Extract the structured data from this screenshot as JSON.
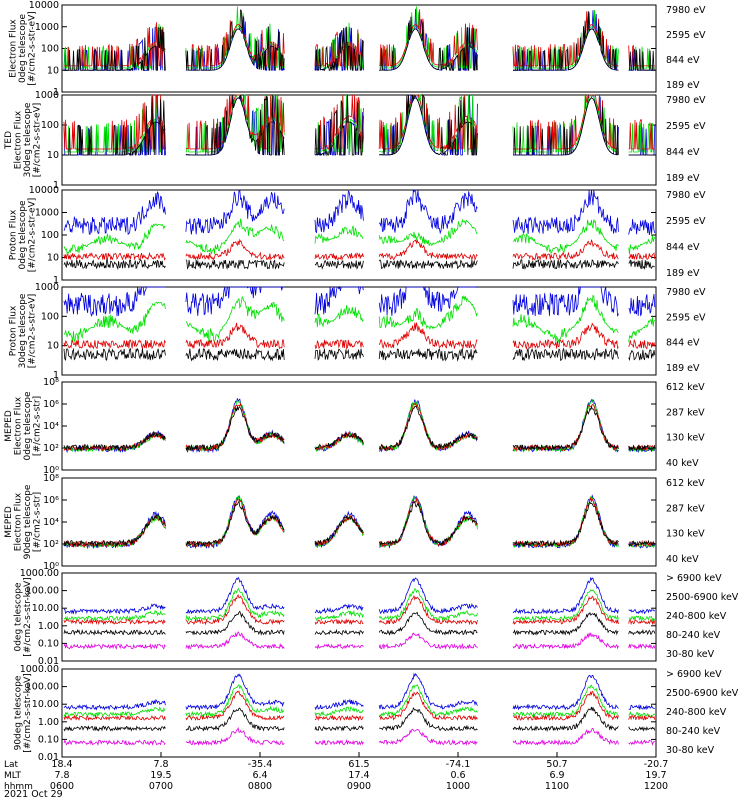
{
  "chart_data": {
    "type": "line",
    "colors": {
      "black": "#000000",
      "red": "#e00000",
      "green": "#00e000",
      "blue": "#0000e0",
      "magenta": "#e000e0"
    },
    "panels": [
      {
        "ylabel": [
          "Electron Flux",
          "0deg telescope",
          "[#/cm2-s-str-eV]"
        ],
        "yticks": [
          "10000",
          "1000",
          "100",
          "10",
          "1"
        ],
        "legend": [
          {
            "label": "7980 eV",
            "color": "black"
          },
          {
            "label": "2595 eV",
            "color": "red"
          },
          {
            "label": "844 eV",
            "color": "green"
          },
          {
            "label": "189 eV",
            "color": "blue"
          }
        ],
        "kind": "ted_e",
        "log_range": [
          0,
          4
        ]
      },
      {
        "ylabel": [
          "TED",
          "Electron Flux",
          "30deg telescope",
          "[#/cm2-s-str-eV]"
        ],
        "yticks": [
          "1000",
          "100",
          "10",
          "1"
        ],
        "legend": [
          {
            "label": "7980 eV",
            "color": "black"
          },
          {
            "label": "2595 eV",
            "color": "red"
          },
          {
            "label": "844 eV",
            "color": "green"
          },
          {
            "label": "189 eV",
            "color": "blue"
          }
        ],
        "kind": "ted_e",
        "log_range": [
          0,
          3
        ]
      },
      {
        "ylabel": [
          "Proton Flux",
          "0deg telescope",
          "[#/cm2-s-str-eV]"
        ],
        "yticks": [
          "10000",
          "1000",
          "100",
          "10",
          "1"
        ],
        "legend": [
          {
            "label": "7980 eV",
            "color": "black"
          },
          {
            "label": "2595 eV",
            "color": "red"
          },
          {
            "label": "844 eV",
            "color": "green"
          },
          {
            "label": "189 eV",
            "color": "blue"
          }
        ],
        "kind": "ted_p",
        "log_range": [
          0,
          4
        ]
      },
      {
        "ylabel": [
          "Proton Flux",
          "30deg telescope",
          "[#/cm2-s-str-eV]"
        ],
        "yticks": [
          "1000",
          "100",
          "10",
          "1"
        ],
        "legend": [
          {
            "label": "7980 eV",
            "color": "black"
          },
          {
            "label": "2595 eV",
            "color": "red"
          },
          {
            "label": "844 eV",
            "color": "green"
          },
          {
            "label": "189 eV",
            "color": "blue"
          }
        ],
        "kind": "ted_p",
        "log_range": [
          0,
          3
        ]
      },
      {
        "ylabel": [
          "MEPED",
          "Electron Flux",
          "0deg telescope",
          "[#/cm2-s-str]"
        ],
        "yticks": [
          "10⁸",
          "10⁶",
          "10⁴",
          "10²",
          "10⁰"
        ],
        "legend": [
          {
            "label": "612 keV",
            "color": "black"
          },
          {
            "label": "287 keV",
            "color": "red"
          },
          {
            "label": "130 keV",
            "color": "green"
          },
          {
            "label": "40 keV",
            "color": "blue"
          }
        ],
        "kind": "mep_e",
        "log_range": [
          0,
          8
        ]
      },
      {
        "ylabel": [
          "MEPED",
          "Electron Flux",
          "90deg telescope",
          "[#/cm2-s-str]"
        ],
        "yticks": [
          "10⁸",
          "10⁶",
          "10⁴",
          "10²",
          "10⁰"
        ],
        "legend": [
          {
            "label": "612 keV",
            "color": "black"
          },
          {
            "label": "287 keV",
            "color": "red"
          },
          {
            "label": "130 keV",
            "color": "green"
          },
          {
            "label": "40 keV",
            "color": "blue"
          }
        ],
        "kind": "mep_e90",
        "log_range": [
          0,
          8
        ]
      },
      {
        "ylabel": [
          "0deg telescope",
          "[#/cm2-s-str-keV]"
        ],
        "yticks": [
          "1000.00",
          "100.00",
          "10.00",
          "1.00",
          "0.10",
          "0.01"
        ],
        "legend": [
          {
            "label": "> 6900 keV",
            "color": "magenta"
          },
          {
            "label": "2500-6900 keV",
            "color": "black"
          },
          {
            "label": "240-800 keV",
            "color": "red"
          },
          {
            "label": "80-240 keV",
            "color": "green"
          },
          {
            "label": "30-80 keV",
            "color": "blue"
          }
        ],
        "kind": "mep_p",
        "log_range": [
          -2,
          3
        ]
      },
      {
        "ylabel": [
          "90deg telescope",
          "[#/cm2-s-str-keV]"
        ],
        "yticks": [
          "1000.00",
          "100.00",
          "10.00",
          "1.00",
          "0.10",
          "0.01"
        ],
        "legend": [
          {
            "label": "> 6900 keV",
            "color": "magenta"
          },
          {
            "label": "2500-6900 keV",
            "color": "black"
          },
          {
            "label": "240-800 keV",
            "color": "red"
          },
          {
            "label": "80-240 keV",
            "color": "green"
          },
          {
            "label": "30-80 keV",
            "color": "blue"
          }
        ],
        "kind": "mep_p90",
        "log_range": [
          -2,
          3
        ]
      }
    ],
    "x_rows": [
      {
        "label": "Lat",
        "ticks": [
          "18.4",
          "7.8",
          "-35.4",
          "61.5",
          "-74.1",
          "50.7",
          "-20.7"
        ]
      },
      {
        "label": "MLT",
        "ticks": [
          "7.8",
          "19.5",
          "6.4",
          "17.4",
          "0.6",
          "6.9",
          "19.7"
        ]
      },
      {
        "label": "hhmm",
        "ticks": [
          "0600",
          "0700",
          "0800",
          "0900",
          "1000",
          "1100",
          "1200"
        ]
      }
    ],
    "date": "2021 Oct 29",
    "x_time_range": [
      "0600",
      "1200"
    ],
    "passes_hours": [
      7.78,
      9.57,
      11.35
    ],
    "weak_passes_hours": [
      6.95,
      8.12,
      8.9,
      10.1
    ]
  }
}
